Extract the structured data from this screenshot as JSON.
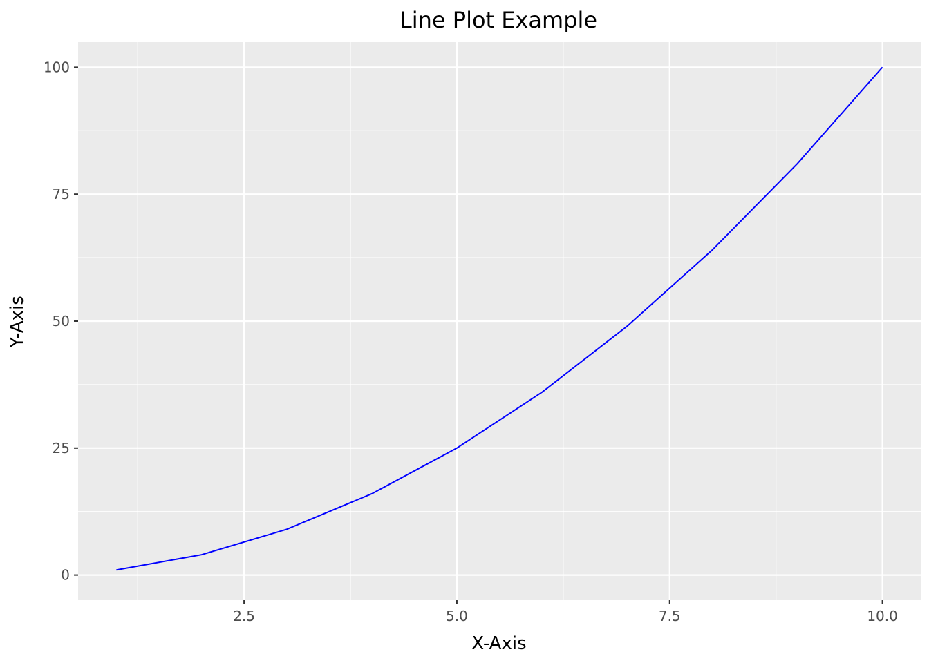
{
  "chart_data": {
    "type": "line",
    "title": "Line Plot Example",
    "xlabel": "X-Axis",
    "ylabel": "Y-Axis",
    "xlim": [
      0.55,
      10.45
    ],
    "ylim": [
      -4.95,
      104.95
    ],
    "x_ticks": [
      2.5,
      5.0,
      7.5,
      10.0
    ],
    "x_tick_labels": [
      "2.5",
      "5.0",
      "7.5",
      "10.0"
    ],
    "x_minor_ticks": [
      1.25,
      3.75,
      6.25,
      8.75
    ],
    "y_ticks": [
      0,
      25,
      50,
      75,
      100
    ],
    "y_tick_labels": [
      "0",
      "25",
      "50",
      "75",
      "100"
    ],
    "y_minor_ticks": [
      12.5,
      37.5,
      62.5,
      87.5
    ],
    "grid": true,
    "legend": "none",
    "panel_background": "#ebebeb",
    "grid_color": "#ffffff",
    "series": [
      {
        "color": "#0000ff",
        "x": [
          1,
          2,
          3,
          4,
          5,
          6,
          7,
          8,
          9,
          10
        ],
        "y": [
          1,
          4,
          9,
          16,
          25,
          36,
          49,
          64,
          81,
          100
        ]
      }
    ]
  }
}
